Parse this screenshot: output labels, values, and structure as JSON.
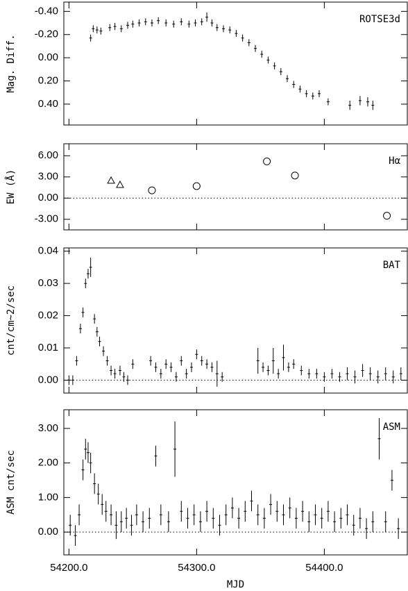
{
  "chart_data": [
    {
      "type": "scatter",
      "label": "ROTSE3d",
      "ylabel": "Mag. Diff.",
      "y_inverted": true,
      "xlim": [
        54196,
        54465
      ],
      "xticks": [
        54200,
        54300,
        54400
      ],
      "ylim": [
        -0.48,
        0.58
      ],
      "yticks": [
        {
          "value": -0.4,
          "label": "-0.40"
        },
        {
          "value": -0.2,
          "label": "-0.20"
        },
        {
          "value": 0,
          "label": "0.00"
        },
        {
          "value": 0.2,
          "label": "0.20"
        },
        {
          "value": 0.4,
          "label": "0.40"
        }
      ],
      "series": [
        {
          "color": "#000000",
          "marker": "errorbar",
          "x": [
            54217,
            54219,
            54222,
            54225,
            54232,
            54236,
            54241,
            54246,
            54250,
            54255,
            54260,
            54265,
            54270,
            54276,
            54282,
            54288,
            54294,
            54299,
            54304,
            54308,
            54312,
            54316,
            54321,
            54326,
            54331,
            54336,
            54341,
            54346,
            54351,
            54356,
            54361,
            54366,
            54371,
            54376,
            54381,
            54386,
            54391,
            54396,
            54403,
            54420,
            54428,
            54434,
            54438
          ],
          "values": [
            -0.17,
            -0.25,
            -0.24,
            -0.23,
            -0.26,
            -0.27,
            -0.25,
            -0.28,
            -0.29,
            -0.3,
            -0.31,
            -0.3,
            -0.32,
            -0.3,
            -0.29,
            -0.31,
            -0.29,
            -0.3,
            -0.31,
            -0.35,
            -0.3,
            -0.26,
            -0.25,
            -0.24,
            -0.21,
            -0.17,
            -0.13,
            -0.08,
            -0.03,
            0.02,
            0.07,
            0.12,
            0.18,
            0.23,
            0.27,
            0.31,
            0.33,
            0.31,
            0.38,
            0.41,
            0.37,
            0.38,
            0.41
          ],
          "errors": [
            0.03,
            0.03,
            0.03,
            0.03,
            0.03,
            0.03,
            0.03,
            0.03,
            0.03,
            0.03,
            0.03,
            0.03,
            0.03,
            0.03,
            0.03,
            0.03,
            0.03,
            0.03,
            0.03,
            0.04,
            0.03,
            0.03,
            0.03,
            0.03,
            0.03,
            0.03,
            0.03,
            0.03,
            0.03,
            0.03,
            0.03,
            0.03,
            0.03,
            0.03,
            0.03,
            0.03,
            0.03,
            0.03,
            0.03,
            0.04,
            0.04,
            0.04,
            0.04
          ]
        }
      ]
    },
    {
      "type": "scatter",
      "label": "Hα",
      "ylabel": "EW (Å)",
      "zero_line": true,
      "xlim": [
        54196,
        54465
      ],
      "xticks": [
        54200,
        54300,
        54400
      ],
      "ylim": [
        -4.5,
        7.7
      ],
      "yticks": [
        {
          "value": -3,
          "label": "-3.00"
        },
        {
          "value": 0,
          "label": "0.00"
        },
        {
          "value": 3,
          "label": "3.00"
        },
        {
          "value": 6,
          "label": "6.00"
        }
      ],
      "series": [
        {
          "color": "#000000",
          "marker": "triangle",
          "x": [
            54233,
            54240
          ],
          "values": [
            2.5,
            1.9
          ]
        },
        {
          "color": "#000000",
          "marker": "circle",
          "x": [
            54265,
            54300,
            54355,
            54377,
            54449
          ],
          "values": [
            1.1,
            1.7,
            5.2,
            3.2,
            -2.5
          ]
        }
      ]
    },
    {
      "type": "scatter",
      "label": "BAT",
      "ylabel": "cnt/cm~2/sec",
      "zero_line": true,
      "xlim": [
        54196,
        54465
      ],
      "xticks": [
        54200,
        54300,
        54400
      ],
      "ylim": [
        -0.004,
        0.041
      ],
      "yticks": [
        {
          "value": 0,
          "label": "0.00"
        },
        0.01,
        0.02,
        0.03,
        0.04
      ],
      "series": [
        {
          "color": "#000000",
          "marker": "errorbar",
          "x": [
            54200,
            54203,
            54206,
            54209,
            54211,
            54213,
            54215,
            54217,
            54220,
            54222,
            54224,
            54227,
            54230,
            54233,
            54236,
            54240,
            54243,
            54246,
            54250,
            54264,
            54268,
            54272,
            54276,
            54280,
            54284,
            54288,
            54292,
            54296,
            54300,
            54304,
            54308,
            54312,
            54316,
            54320,
            54348,
            54352,
            54356,
            54360,
            54364,
            54368,
            54372,
            54376,
            54382,
            54388,
            54394,
            54400,
            54406,
            54412,
            54418,
            54424,
            54430,
            54436,
            54442,
            54448,
            54454,
            54460
          ],
          "values": [
            0.0,
            0.0,
            0.006,
            0.016,
            0.021,
            0.03,
            0.033,
            0.035,
            0.019,
            0.015,
            0.012,
            0.009,
            0.006,
            0.003,
            0.002,
            0.003,
            0.001,
            0.0,
            0.005,
            0.006,
            0.004,
            0.002,
            0.005,
            0.004,
            0.001,
            0.006,
            0.002,
            0.004,
            0.008,
            0.006,
            0.005,
            0.004,
            0.002,
            0.001,
            0.006,
            0.004,
            0.003,
            0.006,
            0.002,
            0.007,
            0.004,
            0.005,
            0.003,
            0.002,
            0.002,
            0.001,
            0.002,
            0.001,
            0.002,
            0.001,
            0.003,
            0.002,
            0.001,
            0.002,
            0.001,
            0.002
          ],
          "errors": [
            0.0015,
            0.0015,
            0.0015,
            0.0015,
            0.0015,
            0.0015,
            0.0015,
            0.003,
            0.0015,
            0.0015,
            0.0015,
            0.0015,
            0.0015,
            0.0015,
            0.0015,
            0.0015,
            0.0015,
            0.0015,
            0.0015,
            0.0015,
            0.0015,
            0.0015,
            0.0015,
            0.0015,
            0.0015,
            0.0015,
            0.0015,
            0.0015,
            0.0015,
            0.0015,
            0.0015,
            0.0015,
            0.004,
            0.0015,
            0.004,
            0.0015,
            0.0015,
            0.004,
            0.0015,
            0.004,
            0.0015,
            0.0015,
            0.0015,
            0.0015,
            0.0015,
            0.0015,
            0.0015,
            0.0015,
            0.002,
            0.002,
            0.002,
            0.002,
            0.002,
            0.002,
            0.002,
            0.002
          ]
        }
      ]
    },
    {
      "type": "scatter",
      "label": "ASM",
      "ylabel": "ASM cnt/sec",
      "xlabel": "MJD",
      "zero_line": true,
      "xlim": [
        54196,
        54465
      ],
      "xticks": [
        {
          "value": 54200,
          "label": "54200.0"
        },
        {
          "value": 54300,
          "label": "54300.0"
        },
        {
          "value": 54400,
          "label": "54400.0"
        }
      ],
      "ylim": [
        -0.66,
        3.54
      ],
      "yticks": [
        {
          "value": 0,
          "label": "0.00"
        },
        {
          "value": 1,
          "label": "1.00"
        },
        {
          "value": 2,
          "label": "2.00"
        },
        {
          "value": 3,
          "label": "3.00"
        }
      ],
      "series": [
        {
          "color": "#000000",
          "marker": "errorbar",
          "x": [
            54201,
            54205,
            54208,
            54211,
            54213,
            54215,
            54217,
            54220,
            54223,
            54226,
            54229,
            54233,
            54237,
            54241,
            54245,
            54249,
            54253,
            54258,
            54263,
            54268,
            54272,
            54278,
            54283,
            54288,
            54293,
            54298,
            54303,
            54308,
            54313,
            54318,
            54323,
            54328,
            54333,
            54338,
            54343,
            54348,
            54353,
            54358,
            54363,
            54368,
            54373,
            54378,
            54383,
            54388,
            54393,
            54398,
            54403,
            54408,
            54413,
            54418,
            54423,
            54428,
            54433,
            54438,
            54443,
            54448,
            54453,
            54458
          ],
          "values": [
            0.2,
            -0.1,
            0.5,
            1.8,
            2.4,
            2.3,
            2.0,
            1.4,
            1.1,
            0.8,
            0.6,
            0.5,
            0.2,
            0.3,
            0.4,
            0.2,
            0.5,
            0.3,
            0.4,
            2.2,
            0.5,
            0.3,
            2.4,
            0.6,
            0.4,
            0.5,
            0.3,
            0.6,
            0.4,
            0.2,
            0.5,
            0.7,
            0.4,
            0.6,
            0.9,
            0.5,
            0.4,
            0.8,
            0.6,
            0.5,
            0.7,
            0.4,
            0.6,
            0.3,
            0.5,
            0.4,
            0.6,
            0.3,
            0.4,
            0.5,
            0.2,
            0.4,
            0.1,
            0.3,
            2.7,
            0.3,
            1.5,
            0.1
          ],
          "errors": [
            0.3,
            0.3,
            0.3,
            0.3,
            0.3,
            0.3,
            0.3,
            0.3,
            0.3,
            0.3,
            0.3,
            0.3,
            0.4,
            0.3,
            0.3,
            0.3,
            0.3,
            0.3,
            0.3,
            0.3,
            0.3,
            0.3,
            0.8,
            0.3,
            0.3,
            0.3,
            0.3,
            0.3,
            0.3,
            0.3,
            0.3,
            0.3,
            0.3,
            0.3,
            0.3,
            0.3,
            0.3,
            0.3,
            0.3,
            0.3,
            0.3,
            0.3,
            0.3,
            0.3,
            0.3,
            0.3,
            0.3,
            0.3,
            0.3,
            0.3,
            0.3,
            0.3,
            0.3,
            0.3,
            0.6,
            0.3,
            0.3,
            0.3
          ]
        }
      ]
    }
  ]
}
